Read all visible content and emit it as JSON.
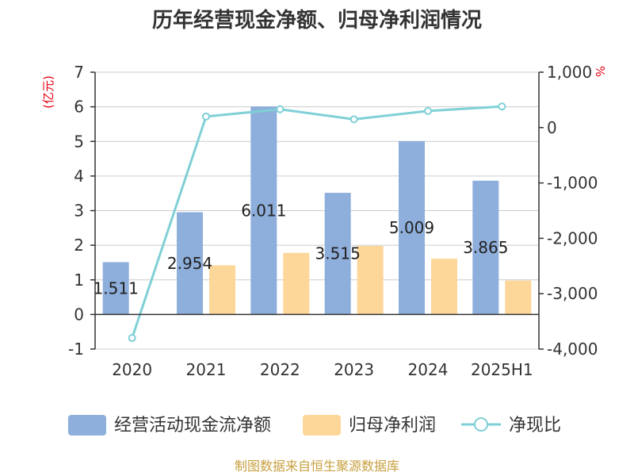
{
  "chart_data": {
    "type": "bar",
    "title": "历年经营现金净额、归母净利润情况",
    "categories": [
      "2020",
      "2021",
      "2022",
      "2023",
      "2024",
      "2025H1"
    ],
    "series": [
      {
        "name": "经营活动现金流净额",
        "axis": "left",
        "color": "#8eaedb",
        "values": [
          1.511,
          2.954,
          6.011,
          3.515,
          5.009,
          3.865
        ],
        "data_labels": [
          "1.511",
          "2.954",
          "6.011",
          "3.515",
          "5.009",
          "3.865"
        ]
      },
      {
        "name": "归母净利润",
        "axis": "left",
        "color": "#fdd699",
        "values": [
          0.01,
          1.42,
          1.78,
          1.98,
          1.61,
          0.98
        ]
      },
      {
        "name": "净现比",
        "axis": "right",
        "type": "line",
        "color": "#7fd0d6",
        "values": [
          -3800,
          200,
          330,
          150,
          300,
          380
        ]
      }
    ],
    "y_left": {
      "unit": "(亿元)",
      "min": -1,
      "max": 7,
      "ticks": [
        "-1",
        "0",
        "1",
        "2",
        "3",
        "4",
        "5",
        "6",
        "7"
      ]
    },
    "y_right": {
      "unit": "%",
      "min": -4000,
      "max": 1000,
      "ticks": [
        "-4,000",
        "-3,000",
        "-2,000",
        "-1,000",
        "0",
        "1,000"
      ]
    },
    "grid": true,
    "legend_position": "bottom"
  },
  "source": "制图数据来自恒生聚源数据库"
}
